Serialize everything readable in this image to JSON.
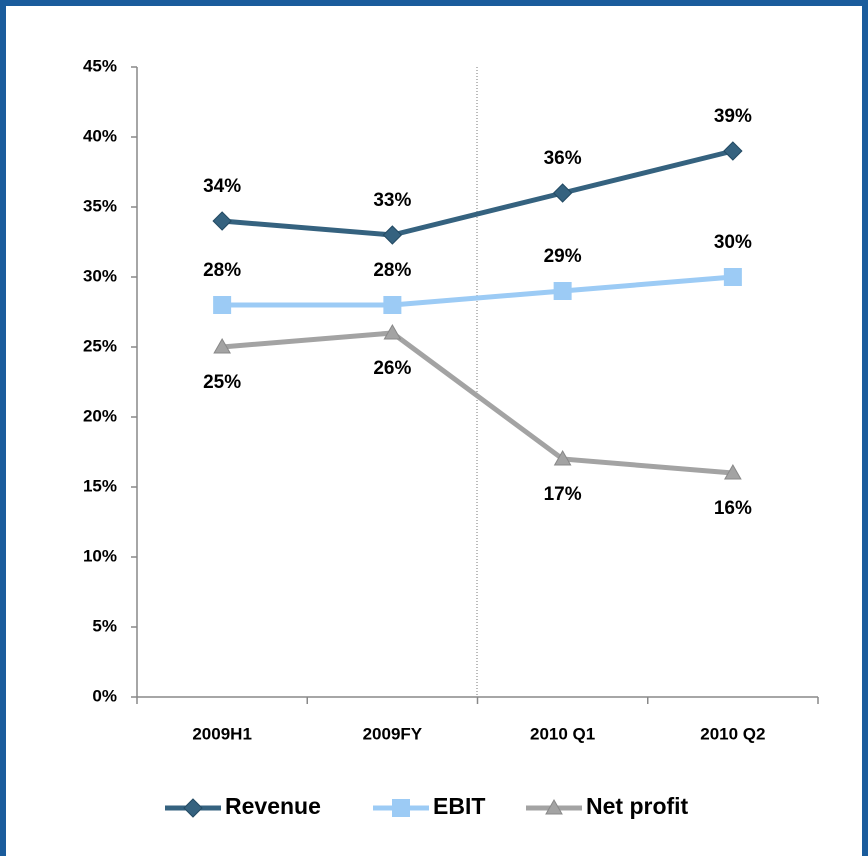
{
  "chart_data": {
    "type": "line",
    "categories": [
      "2009H1",
      "2009FY",
      "2010 Q1",
      "2010 Q2"
    ],
    "series": [
      {
        "name": "Revenue",
        "color": "#35627f",
        "marker": "diamond",
        "values": [
          34,
          33,
          36,
          39
        ],
        "value_labels": [
          "34%",
          "33%",
          "36%",
          "39%"
        ],
        "label_position": "above"
      },
      {
        "name": "EBIT",
        "color": "#9ccbf5",
        "marker": "square",
        "values": [
          28,
          28,
          29,
          30
        ],
        "value_labels": [
          "28%",
          "28%",
          "29%",
          "30%"
        ],
        "label_position": "above"
      },
      {
        "name": "Net profit",
        "color": "#a3a3a3",
        "marker": "triangle",
        "values": [
          25,
          26,
          17,
          16
        ],
        "value_labels": [
          "25%",
          "26%",
          "17%",
          "16%"
        ],
        "label_position": "below"
      }
    ],
    "ylim": [
      0,
      45
    ],
    "yticks": [
      {
        "value": 0,
        "label": "0%"
      },
      {
        "value": 5,
        "label": "5%"
      },
      {
        "value": 10,
        "label": "10%"
      },
      {
        "value": 15,
        "label": "15%"
      },
      {
        "value": 20,
        "label": "20%"
      },
      {
        "value": 25,
        "label": "25%"
      },
      {
        "value": 30,
        "label": "30%"
      },
      {
        "value": 35,
        "label": "35%"
      },
      {
        "value": 40,
        "label": "40%"
      },
      {
        "value": 45,
        "label": "45%"
      }
    ],
    "grid": false,
    "legend": "bottom"
  }
}
